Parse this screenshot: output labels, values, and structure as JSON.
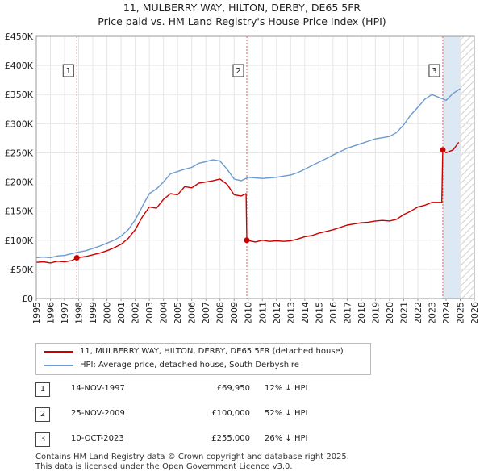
{
  "title_line1": "11, MULBERRY WAY, HILTON, DERBY, DE65 5FR",
  "title_line2": "Price paid vs. HM Land Registry's House Price Index (HPI)",
  "colors": {
    "property": "#cc0000",
    "hpi": "#6b9bd1",
    "marker_line": "#e06060",
    "shade": "#dde8f5",
    "future": "#d9d9d9"
  },
  "chart_data": {
    "type": "line",
    "x_range": [
      1995,
      2026
    ],
    "ylim": [
      0,
      450000
    ],
    "y_ticks": [
      0,
      50000,
      100000,
      150000,
      200000,
      250000,
      300000,
      350000,
      400000,
      450000
    ],
    "y_tick_labels": [
      "£0",
      "£50K",
      "£100K",
      "£150K",
      "£200K",
      "£250K",
      "£300K",
      "£350K",
      "£400K",
      "£450K"
    ],
    "x_ticks": [
      1995,
      1996,
      1997,
      1998,
      1999,
      2000,
      2001,
      2002,
      2003,
      2004,
      2005,
      2006,
      2007,
      2008,
      2009,
      2010,
      2011,
      2012,
      2013,
      2014,
      2015,
      2016,
      2017,
      2018,
      2019,
      2020,
      2021,
      2022,
      2023,
      2024,
      2025,
      2026
    ],
    "grid": true,
    "shaded_period_start": 2023.78,
    "future_from": 2025.0,
    "series": [
      {
        "name": "11, MULBERRY WAY, HILTON, DERBY, DE65 5FR (detached house)",
        "color": "#cc0000",
        "x": [
          1995.0,
          1995.5,
          1996.0,
          1996.5,
          1997.0,
          1997.5,
          1997.87,
          1998.5,
          1999.0,
          1999.5,
          2000.0,
          2000.5,
          2001.0,
          2001.5,
          2002.0,
          2002.5,
          2003.0,
          2003.5,
          2004.0,
          2004.5,
          2005.0,
          2005.5,
          2006.0,
          2006.5,
          2007.0,
          2007.5,
          2008.0,
          2008.5,
          2009.0,
          2009.5,
          2009.85,
          2009.9,
          2010.5,
          2011.0,
          2011.5,
          2012.0,
          2012.5,
          2013.0,
          2013.5,
          2014.0,
          2014.5,
          2015.0,
          2015.5,
          2016.0,
          2016.5,
          2017.0,
          2017.5,
          2018.0,
          2018.5,
          2019.0,
          2019.5,
          2020.0,
          2020.5,
          2021.0,
          2021.5,
          2022.0,
          2022.5,
          2023.0,
          2023.7,
          2023.77,
          2024.0,
          2024.5,
          2024.9
        ],
        "values": [
          62000,
          63000,
          61000,
          64000,
          63000,
          65000,
          69950,
          72000,
          75000,
          78000,
          82000,
          87000,
          93000,
          103000,
          118000,
          140000,
          157000,
          155000,
          170000,
          180000,
          178000,
          192000,
          190000,
          198000,
          200000,
          202000,
          205000,
          196000,
          178000,
          176000,
          180000,
          100000,
          97000,
          100000,
          98000,
          99000,
          98000,
          99000,
          102000,
          106000,
          108000,
          112000,
          115000,
          118000,
          122000,
          126000,
          128000,
          130000,
          131000,
          133000,
          134000,
          133000,
          136000,
          144000,
          150000,
          157000,
          160000,
          165000,
          165000,
          255000,
          250000,
          255000,
          268000
        ]
      },
      {
        "name": "HPI: Average price, detached house, South Derbyshire",
        "color": "#6b9bd1",
        "x": [
          1995.0,
          1995.5,
          1996.0,
          1996.5,
          1997.0,
          1997.5,
          1997.87,
          1998.5,
          1999.0,
          1999.5,
          2000.0,
          2000.5,
          2001.0,
          2001.5,
          2002.0,
          2002.5,
          2003.0,
          2003.5,
          2004.0,
          2004.5,
          2005.0,
          2005.5,
          2006.0,
          2006.5,
          2007.0,
          2007.5,
          2008.0,
          2008.5,
          2009.0,
          2009.5,
          2010.0,
          2010.5,
          2011.0,
          2011.5,
          2012.0,
          2012.5,
          2013.0,
          2013.5,
          2014.0,
          2014.5,
          2015.0,
          2015.5,
          2016.0,
          2016.5,
          2017.0,
          2017.5,
          2018.0,
          2018.5,
          2019.0,
          2019.5,
          2020.0,
          2020.5,
          2021.0,
          2021.5,
          2022.0,
          2022.5,
          2023.0,
          2023.5,
          2024.0,
          2024.5,
          2025.0
        ],
        "values": [
          70000,
          71000,
          70000,
          73000,
          74000,
          77000,
          79000,
          82000,
          86000,
          90000,
          95000,
          100000,
          107000,
          118000,
          135000,
          158000,
          180000,
          188000,
          200000,
          214000,
          218000,
          222000,
          225000,
          232000,
          235000,
          238000,
          236000,
          222000,
          205000,
          202000,
          208000,
          207000,
          206000,
          207000,
          208000,
          210000,
          212000,
          216000,
          222000,
          228000,
          234000,
          240000,
          246000,
          252000,
          258000,
          262000,
          266000,
          270000,
          274000,
          276000,
          278000,
          285000,
          298000,
          315000,
          328000,
          342000,
          350000,
          345000,
          340000,
          352000,
          360000
        ]
      }
    ],
    "sales": [
      {
        "label": "1",
        "x": 1997.87,
        "value": 69950
      },
      {
        "label": "2",
        "x": 2009.9,
        "value": 100000
      },
      {
        "label": "3",
        "x": 2023.77,
        "value": 255000
      }
    ]
  },
  "legend": {
    "property_label": "11, MULBERRY WAY, HILTON, DERBY, DE65 5FR (detached house)",
    "hpi_label": "HPI: Average price, detached house, South Derbyshire"
  },
  "transactions": [
    {
      "num": "1",
      "date": "14-NOV-1997",
      "price": "£69,950",
      "hpi": "12% ↓ HPI"
    },
    {
      "num": "2",
      "date": "25-NOV-2009",
      "price": "£100,000",
      "hpi": "52% ↓ HPI"
    },
    {
      "num": "3",
      "date": "10-OCT-2023",
      "price": "£255,000",
      "hpi": "26% ↓ HPI"
    }
  ],
  "footer": {
    "line1": "Contains HM Land Registry data © Crown copyright and database right 2025.",
    "line2": "This data is licensed under the Open Government Licence v3.0."
  }
}
